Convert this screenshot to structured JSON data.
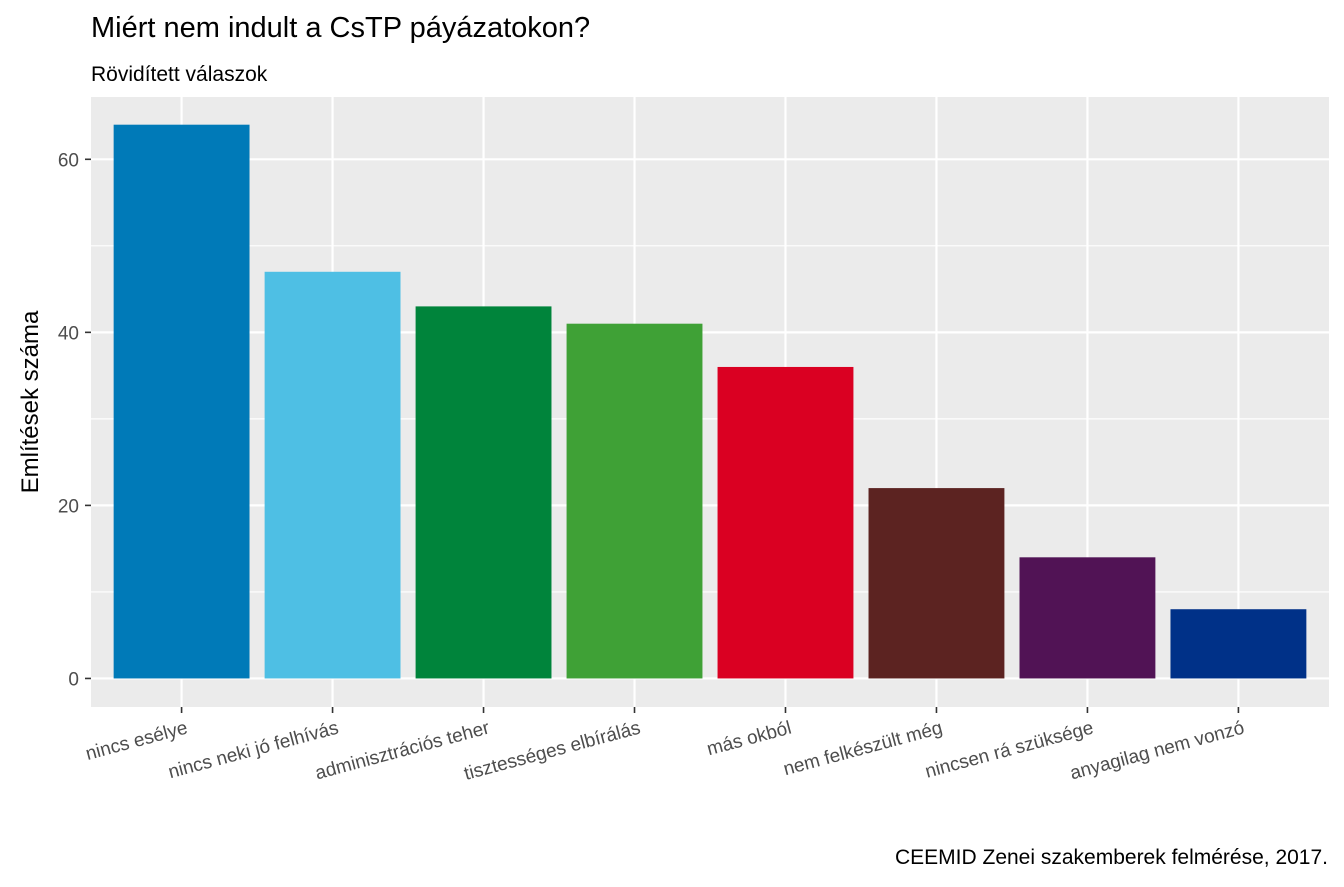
{
  "chart_data": {
    "type": "bar",
    "title": "Miért nem indult a CsTP páyázatokon?",
    "subtitle": "Rövidített válaszok",
    "caption": "CEEMID Zenei szakemberek felmérése, 2017.",
    "xlabel": "",
    "ylabel": "Említések száma",
    "ylim": [
      -3.3,
      67.2
    ],
    "yticks": [
      0,
      20,
      40,
      60
    ],
    "categories": [
      "nincs esélye",
      "nincs neki jó felhívás",
      "adminisztrációs teher",
      "tisztességes elbírálás",
      "más okból",
      "nem felkészült még",
      "nincsen rá szüksége",
      "anyagilag nem vonzó"
    ],
    "values": [
      64,
      47,
      43,
      41,
      36,
      22,
      14,
      8
    ],
    "colors": [
      "#007AB8",
      "#4EBFE4",
      "#00843B",
      "#3FA136",
      "#DA0022",
      "#5C2321",
      "#511355",
      "#003188"
    ],
    "grid": true,
    "legend": "none"
  }
}
